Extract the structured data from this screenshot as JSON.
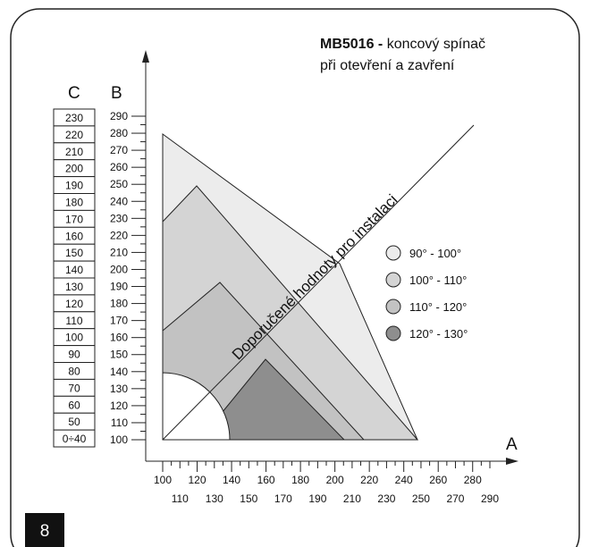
{
  "title": {
    "bold": "MB5016 -",
    "rest": "koncový spínač",
    "line2": "při otevření a zavření"
  },
  "axis_c": {
    "label": "C",
    "rows": [
      "230",
      "220",
      "210",
      "200",
      "190",
      "180",
      "170",
      "160",
      "150",
      "140",
      "130",
      "120",
      "110",
      "100",
      "90",
      "80",
      "70",
      "60",
      "50",
      "0÷40"
    ]
  },
  "axis_b": {
    "label": "B",
    "ticks": [
      290,
      280,
      270,
      260,
      250,
      240,
      230,
      220,
      210,
      200,
      190,
      180,
      170,
      160,
      150,
      140,
      130,
      120,
      110,
      100
    ]
  },
  "axis_a": {
    "label": "A",
    "ticks_top": [
      100,
      120,
      140,
      160,
      180,
      200,
      220,
      240,
      260,
      280
    ],
    "ticks_bottom": [
      110,
      130,
      150,
      170,
      190,
      210,
      230,
      250,
      270,
      290
    ]
  },
  "diagonal_label": "Doporučené hodnoty pro instalaci",
  "legend": [
    "90° - 100°",
    "100° - 110°",
    "110° - 120°",
    "120° - 130°"
  ],
  "page_number": "8"
}
